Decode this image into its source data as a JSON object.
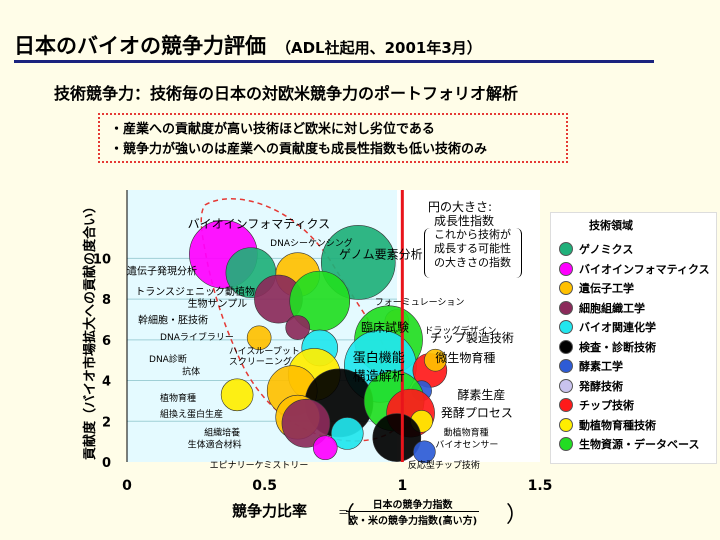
{
  "header": {
    "title": "日本のバイオの競争力評価",
    "title_sub": "（ADL社起用、2001年3月）",
    "subtitle": "技術競争力：技術毎の日本の対欧米競争力のポートフォリオ解析",
    "notes": [
      "・産業への貢献度が高い技術ほど欧米に対し劣位である",
      "・競争力が強いのは産業への貢献度も成長性指数も低い技術のみ"
    ]
  },
  "size_note": {
    "head": "円の大きさ:",
    "line1": "成長性指数",
    "line2": "これから技術が",
    "line3": "成長する可能性",
    "line4": "の大きさの指数"
  },
  "legend": {
    "title": "技術領域",
    "items": [
      {
        "label": "ゲノミクス",
        "color": "#20b07a"
      },
      {
        "label": "バイオインフォマティクス",
        "color": "#ff00ff"
      },
      {
        "label": "遺伝子工学",
        "color": "#ffc000"
      },
      {
        "label": "細胞組織工学",
        "color": "#8b2a5a"
      },
      {
        "label": "バイオ関連化学",
        "color": "#22e6ee"
      },
      {
        "label": "検査・診断技術",
        "color": "#000000"
      },
      {
        "label": "酵素工学",
        "color": "#2d5bd6"
      },
      {
        "label": "発酵技術",
        "color": "#c9c3ee"
      },
      {
        "label": "チップ技術",
        "color": "#ff1a1a"
      },
      {
        "label": "動植物育種技術",
        "color": "#ffee00"
      },
      {
        "label": "生物資源・データベース",
        "color": "#22dd22"
      }
    ]
  },
  "axis_text": {
    "ylabel": "貢献度（バイオ市場拡大への貢献の度合い）",
    "xlabel": "競争力比率",
    "frac_num": "日本の競争力指数",
    "frac_den": "欧・米の競争力指数(高い方)",
    "eq": "＝",
    "paren_l": "（",
    "paren_r": "）"
  },
  "chart_data": {
    "type": "scatter",
    "xlabel": "競争力比率",
    "ylabel": "貢献度（バイオ市場拡大への貢献の度合い）",
    "xlim": [
      0,
      1.5
    ],
    "ylim": [
      0,
      11
    ],
    "xticks": [
      "0",
      "0.5",
      "1",
      "1.5"
    ],
    "yticks": [
      "0",
      "2",
      "4",
      "6",
      "8",
      "10"
    ],
    "reference_line_x": 1,
    "points": [
      {
        "label": "ゲノム要素分析",
        "x": 0.84,
        "y": 9.8,
        "r": 37,
        "color": "#20b07a"
      },
      {
        "label": "バイオインフォマティクス",
        "x": 0.35,
        "y": 10.2,
        "r": 34,
        "color": "#ff00ff"
      },
      {
        "label": "DNAシーケンシング",
        "x": 0.62,
        "y": 9.2,
        "r": 22,
        "color": "#ffc000"
      },
      {
        "label": "遺伝子発現分析",
        "x": 0.45,
        "y": 9.3,
        "r": 25,
        "color": "#20b07a"
      },
      {
        "label": "トランスジェニック動植物",
        "x": 0.55,
        "y": 8.0,
        "r": 24,
        "color": "#8b2a5a"
      },
      {
        "label": "生物サンプル",
        "x": 0.7,
        "y": 7.9,
        "r": 30,
        "color": "#22dd22"
      },
      {
        "label": "幹細胞・胚技術",
        "x": 0.62,
        "y": 6.6,
        "r": 12,
        "color": "#8b2a5a"
      },
      {
        "label": "フォーミュレーション",
        "x": 0.98,
        "y": 6.9,
        "r": 12,
        "color": "#ffc000"
      },
      {
        "label": "臨床試験",
        "x": 0.95,
        "y": 6.0,
        "r": 34,
        "color": "#22dd22"
      },
      {
        "label": "DNAライブラリー",
        "x": 0.48,
        "y": 6.1,
        "r": 12,
        "color": "#ffc000"
      },
      {
        "label": "ハイスループットスクリーニング",
        "x": 0.7,
        "y": 5.6,
        "r": 18,
        "color": "#22e6ee"
      },
      {
        "label": "蛋白機能構造解析",
        "x": 0.92,
        "y": 4.7,
        "r": 36,
        "color": "#22e6ee"
      },
      {
        "label": "DNA診断",
        "x": 0.68,
        "y": 4.3,
        "r": 26,
        "color": "#ffee00"
      },
      {
        "label": "抗体",
        "x": 0.6,
        "y": 3.5,
        "r": 25,
        "color": "#ffc000"
      },
      {
        "label": "植物育種",
        "x": 0.4,
        "y": 3.3,
        "r": 16,
        "color": "#ffee00"
      },
      {
        "label": "検査・診断技術",
        "x": 0.77,
        "y": 2.9,
        "r": 34,
        "color": "#000000"
      },
      {
        "label": "組換え蛋白生産",
        "x": 0.62,
        "y": 2.2,
        "r": 22,
        "color": "#ffc000"
      },
      {
        "label": "組織培養",
        "x": 0.65,
        "y": 1.9,
        "r": 24,
        "color": "#8b2a5a"
      },
      {
        "label": "生体適合材料",
        "x": 0.8,
        "y": 1.4,
        "r": 16,
        "color": "#22e6ee"
      },
      {
        "label": "エピナリーケミストリー",
        "x": 0.72,
        "y": 0.7,
        "r": 12,
        "color": "#ff00ff"
      },
      {
        "label": "チップ製造技術",
        "x": 1.1,
        "y": 4.5,
        "r": 17,
        "color": "#ff1a1a"
      },
      {
        "label": "ドラッグデザイン",
        "x": 1.12,
        "y": 5.0,
        "r": 11,
        "color": "#ffc000"
      },
      {
        "label": "微生物育種",
        "x": 1.07,
        "y": 3.5,
        "r": 10,
        "color": "#2d5bd6"
      },
      {
        "label": "酵素生産",
        "x": 0.97,
        "y": 3.0,
        "r": 30,
        "color": "#22dd22"
      },
      {
        "label": "発酵プロセス",
        "x": 1.03,
        "y": 2.4,
        "r": 24,
        "color": "#ff1a1a"
      },
      {
        "label": "動植物育種",
        "x": 1.07,
        "y": 2.0,
        "r": 11,
        "color": "#ffee00"
      },
      {
        "label": "バイオセンサー",
        "x": 0.98,
        "y": 1.2,
        "r": 24,
        "color": "#000000"
      },
      {
        "label": "反応型チップ技術",
        "x": 1.08,
        "y": 0.5,
        "r": 11,
        "color": "#2d5bd6"
      }
    ],
    "text_labels": [
      {
        "text": "バイオインフォマティクス",
        "x": 0.22,
        "y": 11.5,
        "size": 12
      },
      {
        "text": "DNAシーケンシング",
        "x": 0.52,
        "y": 10.6,
        "size": 9
      },
      {
        "text": "ゲノム要素分析",
        "x": 0.77,
        "y": 10.0,
        "size": 12
      },
      {
        "text": "遺伝子発現分析",
        "x": 0.0,
        "y": 9.2,
        "size": 10
      },
      {
        "text": "トランスジェニック動植物",
        "x": 0.03,
        "y": 8.2,
        "size": 10
      },
      {
        "text": "生物サンプル",
        "x": 0.22,
        "y": 7.6,
        "size": 10
      },
      {
        "text": "幹細胞・胚技術",
        "x": 0.04,
        "y": 6.8,
        "size": 10
      },
      {
        "text": "フォーミュレーション",
        "x": 0.9,
        "y": 7.7,
        "size": 9
      },
      {
        "text": "臨床試験",
        "x": 0.85,
        "y": 6.4,
        "size": 12
      },
      {
        "text": "DNAライブラリー",
        "x": 0.12,
        "y": 6.0,
        "size": 9
      },
      {
        "text": "ハイスループット",
        "x": 0.37,
        "y": 5.3,
        "size": 9
      },
      {
        "text": "スクリーニング",
        "x": 0.37,
        "y": 4.8,
        "size": 9
      },
      {
        "text": "DNA診断",
        "x": 0.08,
        "y": 4.9,
        "size": 9
      },
      {
        "text": "抗体",
        "x": 0.2,
        "y": 4.3,
        "size": 9
      },
      {
        "text": "蛋白機能",
        "x": 0.82,
        "y": 4.9,
        "size": 13
      },
      {
        "text": "構造解析",
        "x": 0.82,
        "y": 4.0,
        "size": 13
      },
      {
        "text": "植物育種",
        "x": 0.12,
        "y": 3.0,
        "size": 9
      },
      {
        "text": "組換え蛋白生産",
        "x": 0.12,
        "y": 2.2,
        "size": 9
      },
      {
        "text": "組織培養",
        "x": 0.28,
        "y": 1.3,
        "size": 9
      },
      {
        "text": "生体適合材料",
        "x": 0.22,
        "y": 0.7,
        "size": 9
      },
      {
        "text": "エピナリーケミストリー",
        "x": 0.3,
        "y": -0.3,
        "size": 9
      },
      {
        "text": "ドラッグデザイン",
        "x": 1.08,
        "y": 6.3,
        "size": 9
      },
      {
        "text": "チップ製造技術",
        "x": 1.1,
        "y": 5.9,
        "size": 12
      },
      {
        "text": "微生物育種",
        "x": 1.12,
        "y": 4.9,
        "size": 12
      },
      {
        "text": "酵素生産",
        "x": 1.2,
        "y": 3.1,
        "size": 12
      },
      {
        "text": "発酵プロセス",
        "x": 1.14,
        "y": 2.2,
        "size": 12
      },
      {
        "text": "動植物育種",
        "x": 1.15,
        "y": 1.3,
        "size": 9
      },
      {
        "text": "バイオセンサー",
        "x": 1.12,
        "y": 0.7,
        "size": 9
      },
      {
        "text": "反応型チップ技術",
        "x": 1.02,
        "y": -0.3,
        "size": 9
      }
    ]
  }
}
